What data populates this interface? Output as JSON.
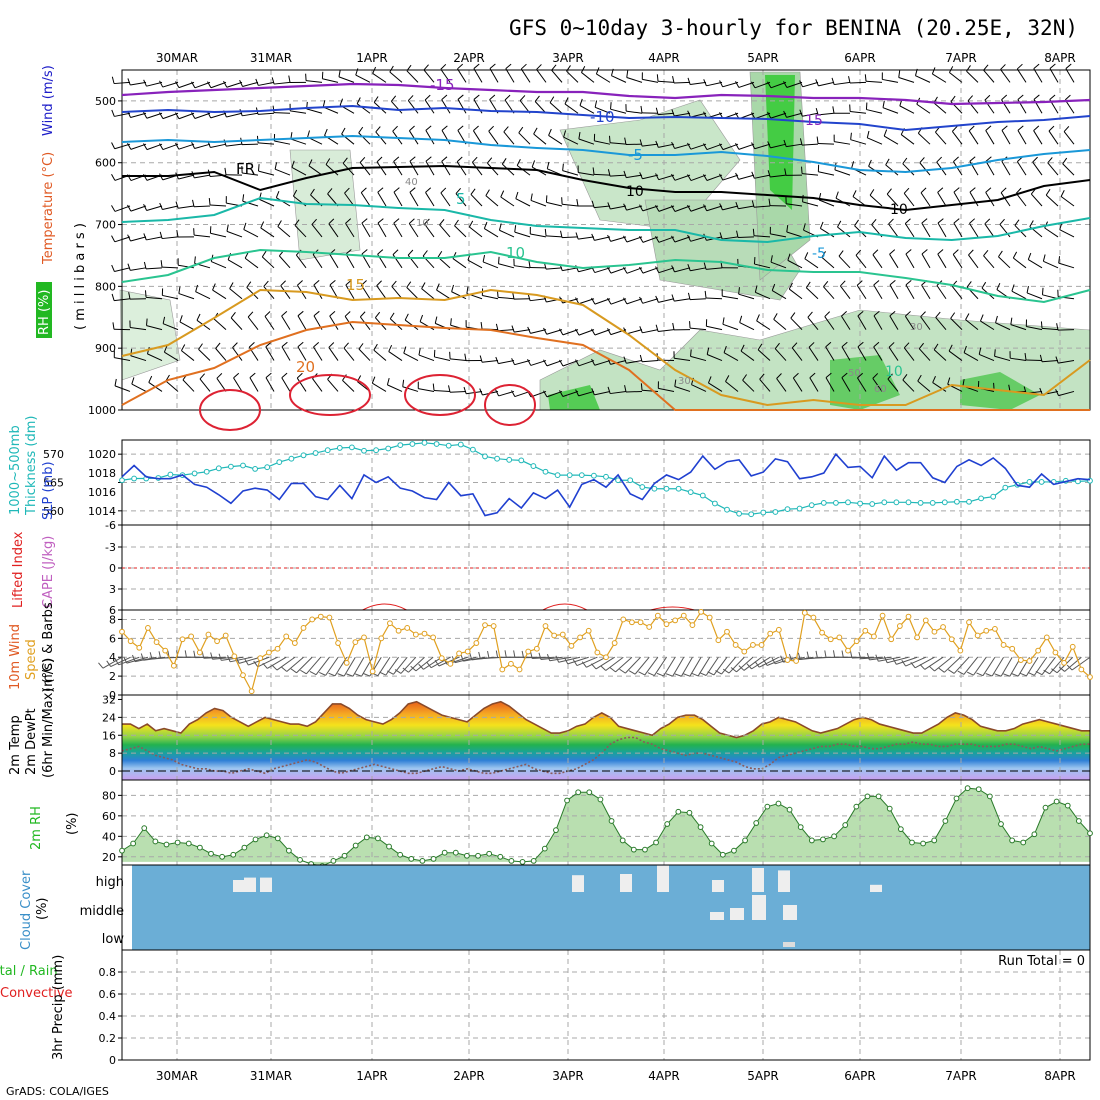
{
  "title": "GFS 0~10day 3-hourly for BENINA (20.25E, 32N)",
  "credit": "GrADS: COLA/IGES",
  "date_labels": [
    "30MAR",
    "31MAR",
    "1APR",
    "2APR",
    "3APR",
    "4APR",
    "5APR",
    "6APR",
    "7APR",
    "8APR"
  ],
  "colors": {
    "temp_label": "#e05a24",
    "wind_label": "#1c1cc8",
    "rh_label": "#22b822",
    "cyan": "#20b8b8",
    "blue": "#2040d0",
    "cape": "#c060c0",
    "li": "#e02020",
    "wind10_label": "#e05a24",
    "speed": "#e0a020",
    "cloud": "#6baed6",
    "precip_green": "#22b822",
    "precip_red": "#e02020"
  },
  "panel_labels": {
    "profile": {
      "rh": "RH (%)",
      "temperature": "Temperature (°C)",
      "wind": "Wind (m/s)",
      "pressure": "( m i l l i b a r s )"
    },
    "thickness": {
      "thk": "1000~500mb",
      "thk2": "Thickness (dm)",
      "slp": "SLP (mb)"
    },
    "li_cape": {
      "li": "Lifted Index",
      "cape": "CAPE (J/kg)"
    },
    "wind10": {
      "l1": "10m Wind",
      "l2": "Speed",
      "l3": "(m/s) & Barbs"
    },
    "temp2m": {
      "l1": "2m Temp",
      "l2": "2m DewPt",
      "l3": "(6hr Min/Max) (°C)"
    },
    "rh2m": {
      "l1": "2m RH",
      "l2": "(%)"
    },
    "cloud": {
      "l1": "Cloud Cover",
      "l2": "(%)",
      "high": "high",
      "middle": "middle",
      "low": "low"
    },
    "precip": {
      "l1": "Total / Rain",
      "l2": "Convective",
      "l3": "3hr Precip (mm)",
      "run_total": "Run Total = 0"
    }
  },
  "chart_data": [
    {
      "type": "contour",
      "name": "pressure-profile",
      "ylabel": "( m i l l i b a r s )",
      "y_ticks": [
        500,
        600,
        700,
        800,
        900,
        1000
      ],
      "contour_labels": [
        "-15",
        "-10",
        "-5",
        "FR",
        "5",
        "10",
        "15",
        "20",
        "-15",
        "-5",
        "10"
      ],
      "rh_labels": [
        "40",
        "10",
        "30",
        "30",
        "50",
        "60"
      ]
    },
    {
      "type": "line",
      "name": "thickness-slp",
      "y_ticks_left": [
        560,
        565,
        570
      ],
      "y_ticks_right": [
        1014,
        1016,
        1018,
        1020
      ],
      "thickness": [
        565.4,
        565.7,
        565.7,
        565.8,
        566.4,
        566.3,
        566.6,
        566.9,
        567.5,
        567.8,
        568,
        567.4,
        567.7,
        568.6,
        569.2,
        569.8,
        570.2,
        570.7,
        571.1,
        571.2,
        570.6,
        570.7,
        571,
        571.6,
        571.8,
        572,
        571.8,
        571.5,
        571.7,
        570.8,
        569.6,
        569.2,
        569,
        568.9,
        567.9,
        566.9,
        566.3,
        566.3,
        566.3,
        566.2,
        566,
        565.4,
        565.4,
        564.2,
        563.9,
        563.9,
        563.9,
        563.3,
        562.7,
        561.3,
        560.2,
        559.5,
        559.4,
        559.7,
        559.8,
        560.3,
        560.4,
        561,
        561.4,
        561.4,
        561.5,
        561.3,
        561.2,
        561.5,
        561.5,
        561.5,
        561.4,
        561.4,
        561.5,
        561.6,
        561.6,
        562.2,
        562.5,
        564.1,
        564.6,
        565.1,
        565.1,
        565.1,
        565.3,
        565.2,
        565.3
      ],
      "slp": [
        1017.6,
        1018.8,
        1017.6,
        1017.4,
        1017.4,
        1017.8,
        1016.8,
        1016.5,
        1015.7,
        1014.8,
        1016.1,
        1016.4,
        1016.2,
        1015.2,
        1016.9,
        1016.9,
        1015.5,
        1015.2,
        1016.7,
        1015.3,
        1017.8,
        1017.0,
        1017.6,
        1016.4,
        1016.1,
        1015.4,
        1015.2,
        1017.0,
        1015.6,
        1015.8,
        1013.5,
        1013.8,
        1015.3,
        1014.3,
        1015.9,
        1015.3,
        1016.2,
        1014.4,
        1016.8,
        1017.3,
        1016.5,
        1017.8,
        1015.8,
        1015.2,
        1016.9,
        1017.8,
        1017.3,
        1018.1,
        1019.8,
        1018.4,
        1019.2,
        1019.4,
        1017.7,
        1018.1,
        1019.5,
        1019.2,
        1017.4,
        1017.6,
        1018.0,
        1020.0,
        1018.6,
        1018.7,
        1017.5,
        1019.8,
        1018.3,
        1019.1,
        1019.1,
        1017.5,
        1017.0,
        1018.7,
        1019.4,
        1018.8,
        1019.6,
        1018.5,
        1016.7,
        1016.5,
        1017.9,
        1016.8,
        1017.1,
        1017.4,
        1017.3
      ]
    },
    {
      "type": "line",
      "name": "lifted-index-cape",
      "y_ticks": [
        "6",
        "3",
        "0",
        "-3",
        "-6"
      ],
      "cape_bumps": [
        {
          "x": 21.7,
          "v": 6
        },
        {
          "x": 36.6,
          "v": 6
        },
        {
          "x": 45.5,
          "v": 3
        }
      ]
    },
    {
      "type": "line",
      "name": "10m-wind",
      "y_ticks": [
        0,
        2,
        4,
        6,
        8
      ],
      "speed": [
        6.7,
        5.7,
        5.0,
        7.1,
        5.6,
        4.7,
        3.1,
        5.9,
        6.2,
        4.5,
        6.4,
        5.7,
        6.3,
        4.1,
        2.1,
        0.4,
        3.9,
        4.5,
        4.9,
        6.2,
        5.5,
        7.1,
        8.0,
        8.3,
        8.2,
        5.5,
        3.4,
        5.6,
        6.1,
        2.5,
        6.0,
        7.6,
        6.8,
        7.1,
        6.4,
        6.5,
        6.1,
        3.9,
        3.3,
        4.4,
        4.6,
        5.5,
        7.4,
        7.3,
        2.7,
        3.3,
        2.7,
        4.6,
        4.9,
        7.3,
        6.3,
        6.4,
        5.2,
        6.1,
        6.8,
        4.5,
        4.0,
        5.5,
        8.0,
        7.7,
        7.7,
        7.2,
        8.4,
        7.5,
        7.9,
        8.4,
        7.4,
        8.8,
        8.2,
        5.8,
        6.7,
        5.3,
        4.6,
        5.3,
        5.3,
        6.5,
        6.9,
        3.7,
        3.6,
        8.7,
        8.2,
        6.6,
        5.9,
        6.1,
        4.7,
        5.7,
        6.8,
        6.2,
        8.4,
        5.9,
        7.3,
        8.3,
        6.1,
        7.9,
        6.7,
        7.2,
        5.9,
        4.7,
        7.7,
        6.3,
        6.8,
        7.0,
        5.3,
        4.9,
        3.7,
        3.6,
        4.7,
        6.1,
        4.5,
        3.4,
        5.1,
        2.7,
        1.9
      ]
    },
    {
      "type": "area",
      "name": "2m-temperature",
      "y_ticks": [
        0,
        8,
        16,
        24,
        32
      ],
      "temp": [
        21,
        21,
        19,
        21,
        18,
        19,
        18,
        17,
        21,
        23,
        26,
        28,
        27,
        24,
        22,
        20,
        22,
        24,
        23,
        22,
        21,
        21,
        20,
        22,
        26,
        30,
        30,
        28,
        25,
        23,
        22,
        21,
        23,
        26,
        30,
        31,
        29,
        27,
        25,
        24,
        23,
        22,
        25,
        28,
        30,
        31,
        29,
        26,
        23,
        21,
        19,
        17,
        17,
        18,
        20,
        21,
        24,
        26,
        24,
        20,
        19,
        18,
        17,
        16,
        19,
        21,
        24,
        25,
        25,
        23,
        20,
        17,
        16,
        15,
        16,
        18,
        21,
        22,
        24,
        23,
        22,
        20,
        18,
        17,
        18,
        19,
        21,
        23,
        24,
        23,
        21,
        20,
        19,
        18,
        17,
        17,
        19,
        21,
        24,
        26,
        25,
        23,
        20,
        19,
        18,
        18,
        19,
        21,
        22,
        23,
        22,
        21,
        20,
        19,
        18,
        18
      ],
      "dew": [
        9,
        10,
        11,
        9,
        7,
        6,
        5,
        3,
        2,
        1,
        1,
        0,
        0,
        -1,
        0,
        1,
        0,
        -1,
        1,
        2,
        3,
        4,
        5,
        4,
        2,
        0,
        -1,
        0,
        1,
        2,
        3,
        2,
        1,
        0,
        -1,
        -1,
        0,
        1,
        2,
        1,
        0,
        1,
        0,
        -1,
        -1,
        0,
        1,
        2,
        3,
        1,
        0,
        -1,
        -1,
        0,
        1,
        3,
        5,
        8,
        12,
        14,
        15,
        15,
        13,
        12,
        10,
        9,
        8,
        7,
        8,
        8,
        7,
        6,
        5,
        4,
        2,
        1,
        1,
        3,
        6,
        7,
        8,
        9,
        10,
        11,
        11,
        12,
        12,
        11,
        11,
        10,
        10,
        11,
        12,
        12,
        13,
        12,
        12,
        11,
        11,
        12,
        12,
        12,
        11,
        11,
        11,
        12,
        12,
        11,
        10,
        11,
        10,
        9,
        10,
        11,
        12,
        12
      ]
    },
    {
      "type": "area",
      "name": "2m-relative-humidity",
      "y_ticks": [
        20,
        40,
        60,
        80
      ],
      "rh": [
        26,
        33,
        48,
        35,
        32,
        34,
        33,
        29,
        23,
        20,
        22,
        29,
        37,
        41,
        38,
        26,
        17,
        13,
        11,
        16,
        21,
        31,
        39,
        38,
        30,
        22,
        18,
        16,
        18,
        24,
        24,
        21,
        21,
        23,
        20,
        16,
        15,
        16,
        28,
        46,
        75,
        83,
        83,
        76,
        55,
        36,
        27,
        27,
        34,
        52,
        64,
        63,
        49,
        33,
        22,
        26,
        36,
        53,
        69,
        72,
        66,
        49,
        36,
        37,
        40,
        51,
        69,
        79,
        79,
        67,
        47,
        34,
        33,
        36,
        55,
        77,
        87,
        86,
        79,
        52,
        36,
        34,
        42,
        68,
        74,
        70,
        55,
        43
      ]
    },
    {
      "type": "bar",
      "name": "cloud-cover",
      "y_ticks": [
        "low",
        "middle",
        "high"
      ],
      "high_bars": [
        [
          233,
          10
        ],
        [
          244,
          12
        ],
        [
          260,
          12
        ],
        [
          572,
          14
        ],
        [
          620,
          15
        ],
        [
          657,
          22
        ],
        [
          712,
          10
        ],
        [
          752,
          20
        ],
        [
          778,
          18
        ],
        [
          870,
          6
        ]
      ],
      "mid_bars": [
        [
          710,
          8
        ],
        [
          730,
          12
        ],
        [
          752,
          25
        ],
        [
          783,
          15
        ]
      ],
      "low_bars": [
        [
          783,
          10
        ]
      ]
    },
    {
      "type": "bar",
      "name": "3hr-precipitation",
      "y_ticks": [
        0,
        0.2,
        0.4,
        0.6,
        0.8
      ],
      "values": []
    }
  ]
}
